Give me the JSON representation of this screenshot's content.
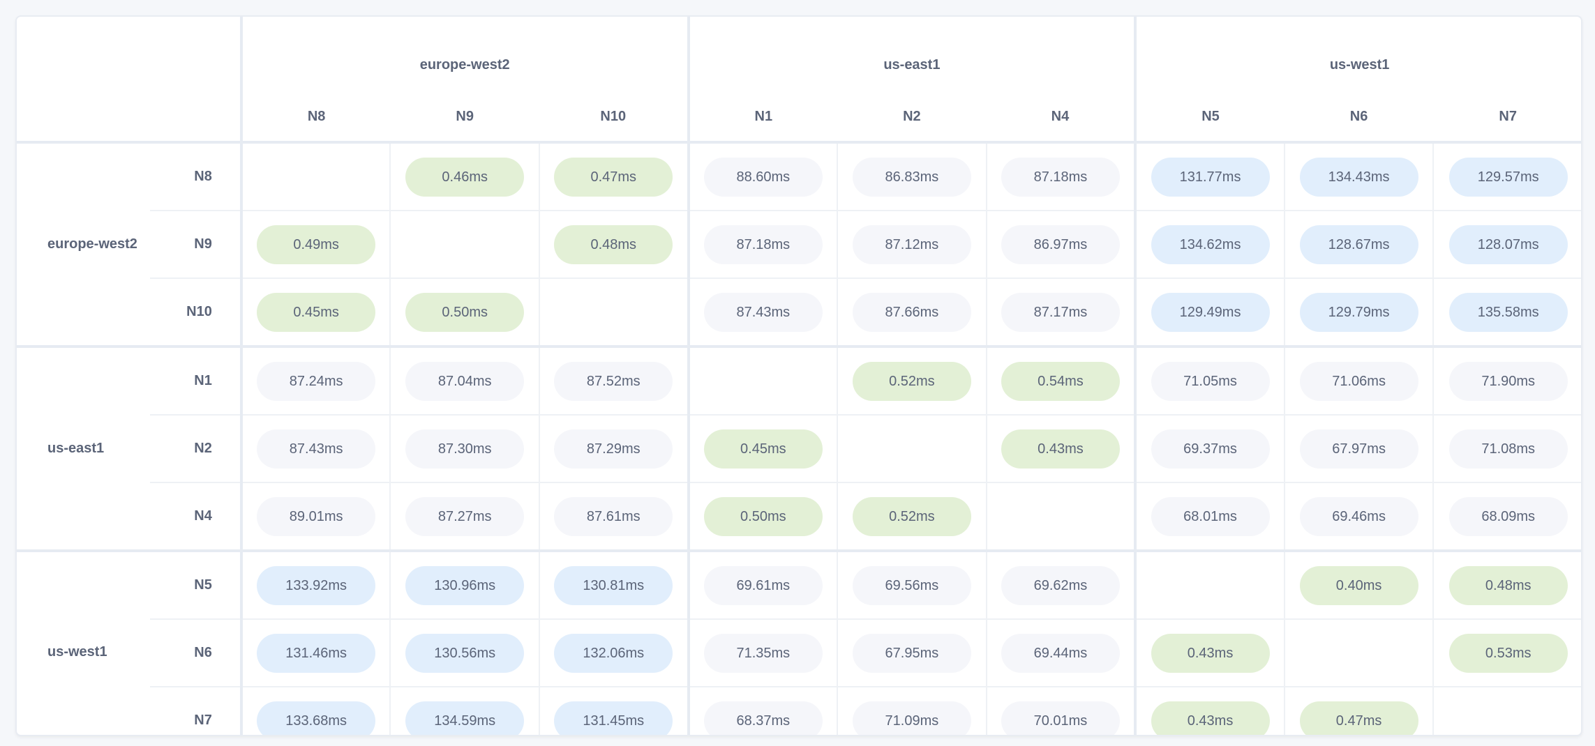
{
  "regions": [
    {
      "name": "europe-west2",
      "nodes": [
        "N8",
        "N9",
        "N10"
      ]
    },
    {
      "name": "us-east1",
      "nodes": [
        "N1",
        "N2",
        "N4"
      ]
    },
    {
      "name": "us-west1",
      "nodes": [
        "N5",
        "N6",
        "N7"
      ]
    }
  ],
  "colors": {
    "same_region": "#e3f0d6",
    "near_region": "#f5f6fa",
    "far_region": "#e1eefc"
  },
  "matrix": [
    [
      "",
      "0.46ms",
      "0.47ms",
      "88.60ms",
      "86.83ms",
      "87.18ms",
      "131.77ms",
      "134.43ms",
      "129.57ms"
    ],
    [
      "0.49ms",
      "",
      "0.48ms",
      "87.18ms",
      "87.12ms",
      "86.97ms",
      "134.62ms",
      "128.67ms",
      "128.07ms"
    ],
    [
      "0.45ms",
      "0.50ms",
      "",
      "87.43ms",
      "87.66ms",
      "87.17ms",
      "129.49ms",
      "129.79ms",
      "135.58ms"
    ],
    [
      "87.24ms",
      "87.04ms",
      "87.52ms",
      "",
      "0.52ms",
      "0.54ms",
      "71.05ms",
      "71.06ms",
      "71.90ms"
    ],
    [
      "87.43ms",
      "87.30ms",
      "87.29ms",
      "0.45ms",
      "",
      "0.43ms",
      "69.37ms",
      "67.97ms",
      "71.08ms"
    ],
    [
      "89.01ms",
      "87.27ms",
      "87.61ms",
      "0.50ms",
      "0.52ms",
      "",
      "68.01ms",
      "69.46ms",
      "68.09ms"
    ],
    [
      "133.92ms",
      "130.96ms",
      "130.81ms",
      "69.61ms",
      "69.56ms",
      "69.62ms",
      "",
      "0.40ms",
      "0.48ms"
    ],
    [
      "131.46ms",
      "130.56ms",
      "132.06ms",
      "71.35ms",
      "67.95ms",
      "69.44ms",
      "0.43ms",
      "",
      "0.53ms"
    ],
    [
      "133.68ms",
      "134.59ms",
      "131.45ms",
      "68.37ms",
      "71.09ms",
      "70.01ms",
      "0.43ms",
      "0.47ms",
      ""
    ]
  ]
}
